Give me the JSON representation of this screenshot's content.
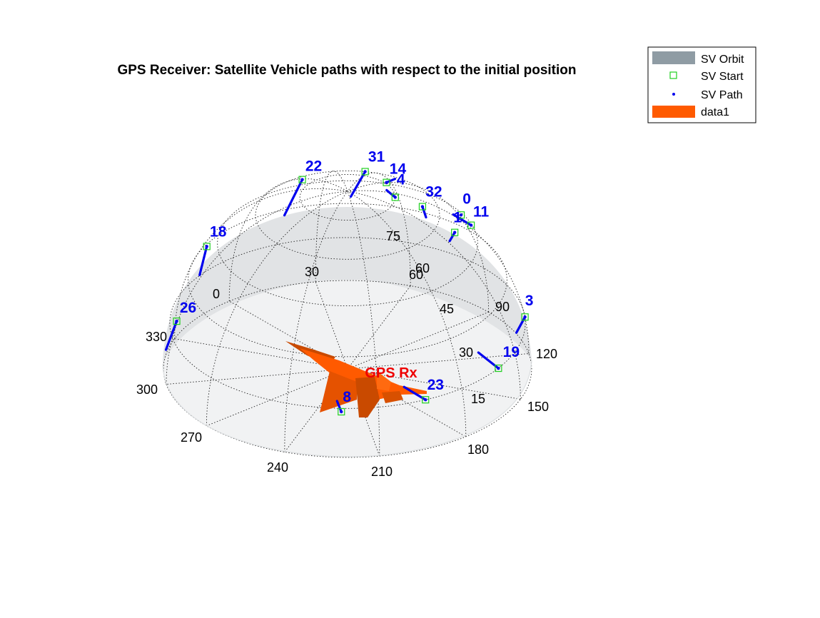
{
  "chart_data": {
    "type": "scatter",
    "title": "GPS Receiver: Satellite Vehicle paths with respect to the initial position",
    "receiver_label": "GPS Rx",
    "azimuth_ticks": [
      "0",
      "30",
      "60",
      "90",
      "120",
      "150",
      "180",
      "210",
      "240",
      "270",
      "300",
      "330"
    ],
    "elevation_ticks": [
      "15",
      "30",
      "45",
      "60",
      "75"
    ],
    "legend": {
      "placement": "top-right",
      "entries": [
        {
          "label": "SV Orbit",
          "kind": "patch",
          "color": "#8f9ca4"
        },
        {
          "label": "SV Start",
          "kind": "square",
          "color": "#1fcf1f"
        },
        {
          "label": "SV Path",
          "kind": "dot",
          "color": "#0000ee"
        },
        {
          "label": "data1",
          "kind": "patch",
          "color": "#ff5a00"
        }
      ]
    },
    "satellites": [
      {
        "id": "14",
        "az": 0,
        "el": 74
      },
      {
        "id": "31",
        "az": 39,
        "el": 60
      },
      {
        "id": "22",
        "az": 73,
        "el": 51
      },
      {
        "id": "18",
        "az": 110,
        "el": 28
      },
      {
        "id": "26",
        "az": 149,
        "el": 20
      },
      {
        "id": "8",
        "az": 228,
        "el": 14
      },
      {
        "id": "23",
        "az": 256,
        "el": 15
      },
      {
        "id": "19",
        "az": 288,
        "el": 15
      },
      {
        "id": "3",
        "az": 324,
        "el": 15
      },
      {
        "id": "11",
        "az": 335,
        "el": 46
      },
      {
        "id": "0",
        "az": 340,
        "el": 49
      },
      {
        "id": "1",
        "az": 312,
        "el": 54
      },
      {
        "id": "4",
        "az": 320,
        "el": 75
      },
      {
        "id": "32",
        "az": 320,
        "el": 66
      }
    ]
  },
  "colors": {
    "sv_label": "#0000ee",
    "sv_path": "#0000ee",
    "sv_start": "#1fcf1f",
    "receiver_label": "#ee0000",
    "aircraft": "#ff5a00",
    "dome": "#c8ccd0"
  }
}
